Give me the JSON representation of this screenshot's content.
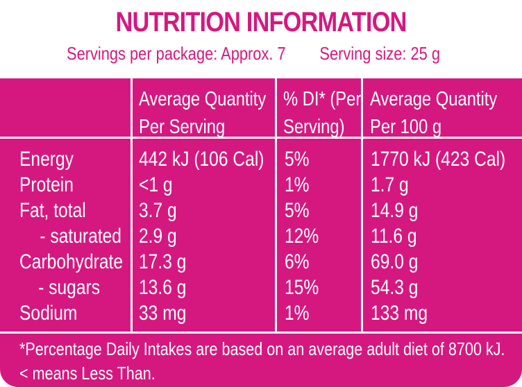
{
  "title": "NUTRITION INFORMATION",
  "servings_per_package": "Servings per package: Approx. 7",
  "serving_size": "Serving size: 25 g",
  "columns": {
    "per_serving_line1": "Average Quantity",
    "per_serving_line2": "Per Serving",
    "di_line1": "% DI* (Per",
    "di_line2": "Serving)",
    "per_100g_line1": "Average Quantity",
    "per_100g_line2": "Per 100 g"
  },
  "rows": [
    {
      "name": "Energy",
      "per_serving": "442 kJ (106 Cal)",
      "di": "5%",
      "per_100g": "1770 kJ (423 Cal)"
    },
    {
      "name": "Protein",
      "per_serving": "<1 g",
      "di": "1%",
      "per_100g": "1.7 g"
    },
    {
      "name": "Fat, total",
      "per_serving": "3.7 g",
      "di": "5%",
      "per_100g": "14.9 g"
    },
    {
      "name": "- saturated",
      "per_serving": "2.9 g",
      "di": "12%",
      "per_100g": "11.6 g"
    },
    {
      "name": "Carbohydrate",
      "per_serving": "17.3 g",
      "di": "6%",
      "per_100g": "69.0 g"
    },
    {
      "name": "- sugars",
      "per_serving": "13.6 g",
      "di": "15%",
      "per_100g": "54.3 g"
    },
    {
      "name": "Sodium",
      "per_serving": "33 mg",
      "di": "1%",
      "per_100g": "133 mg"
    }
  ],
  "footnote_line1": "*Percentage Daily Intakes are based on an average adult diet of 8700 kJ.",
  "footnote_line2": "< means Less Than.",
  "colors": {
    "brand": "#d5187f",
    "text_on_brand": "#ffffff"
  }
}
